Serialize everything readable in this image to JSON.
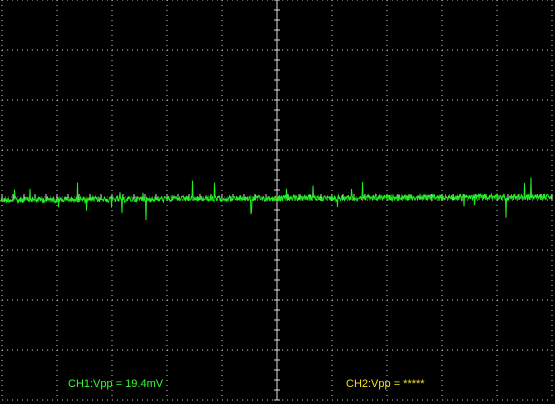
{
  "channels": [
    {
      "label": "CH1:Vpp = 19.4mV"
    },
    {
      "label": "CH2:Vpp = *****"
    }
  ]
}
